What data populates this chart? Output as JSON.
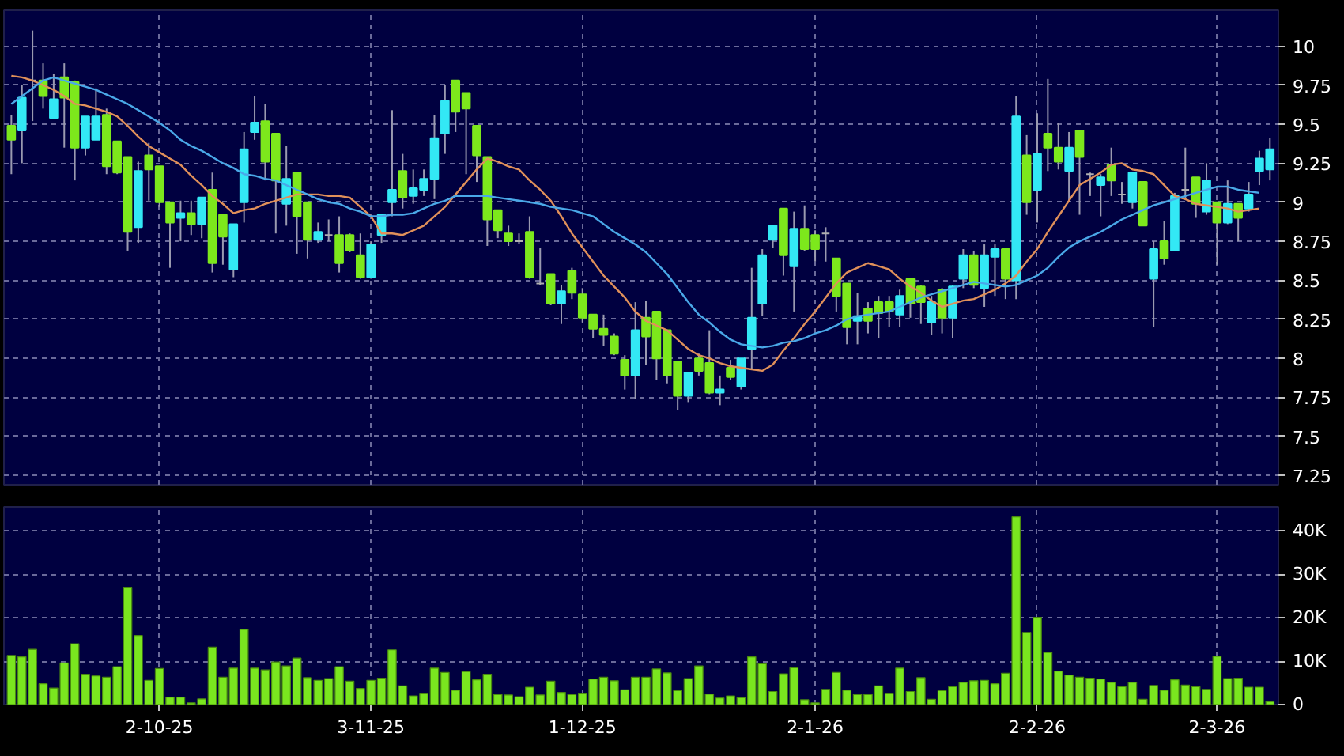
{
  "chart_data": [
    {
      "type": "candlestick",
      "categories": [
        null,
        null,
        null,
        null,
        null,
        null,
        null,
        null,
        null,
        null,
        null,
        null,
        null,
        null,
        null,
        null,
        null,
        null,
        null,
        null,
        null,
        null,
        null,
        null,
        null,
        null,
        null,
        null,
        null,
        null,
        null,
        null,
        null,
        null,
        null,
        null,
        null,
        null,
        null,
        null,
        null,
        null,
        null,
        null,
        null,
        null,
        null,
        null,
        null,
        null,
        null,
        null,
        null,
        null,
        null,
        null,
        null,
        null,
        null,
        null,
        null,
        null,
        null,
        null,
        null,
        null,
        null,
        null,
        null,
        null,
        null,
        null,
        null,
        null,
        null,
        null,
        null,
        null,
        null,
        null,
        null,
        null,
        null,
        null,
        null,
        null,
        null,
        null,
        null,
        null,
        null,
        null,
        null,
        null,
        null,
        null,
        null,
        null,
        null,
        null,
        null,
        null,
        null,
        null,
        null,
        null,
        null,
        null,
        null,
        null,
        null,
        null,
        null,
        null,
        null,
        null,
        null,
        null,
        null,
        null
      ],
      "ohlc": [
        [
          9.49,
          9.56,
          9.18,
          9.4
        ],
        [
          9.46,
          9.75,
          9.25,
          9.67
        ],
        [
          9.78,
          10.1,
          9.52,
          9.78
        ],
        [
          9.78,
          9.89,
          9.6,
          9.68
        ],
        [
          9.54,
          9.82,
          9.54,
          9.66
        ],
        [
          9.8,
          9.89,
          9.35,
          9.67
        ],
        [
          9.77,
          9.78,
          9.14,
          9.35
        ],
        [
          9.35,
          9.55,
          9.3,
          9.55
        ],
        [
          9.4,
          9.73,
          9.4,
          9.55
        ],
        [
          9.56,
          9.6,
          9.18,
          9.23
        ],
        [
          9.39,
          9.39,
          9.18,
          9.19
        ],
        [
          9.29,
          9.29,
          8.69,
          8.81
        ],
        [
          8.84,
          9.26,
          8.74,
          9.2
        ],
        [
          9.3,
          9.38,
          9.01,
          9.21
        ],
        [
          9.23,
          9.23,
          8.97,
          9.0
        ],
        [
          9.0,
          9.0,
          8.58,
          8.87
        ],
        [
          8.9,
          9.01,
          8.75,
          8.93
        ],
        [
          8.93,
          9.01,
          8.79,
          8.86
        ],
        [
          8.86,
          9.03,
          8.77,
          9.03
        ],
        [
          9.08,
          9.19,
          8.55,
          8.61
        ],
        [
          8.92,
          8.92,
          8.6,
          8.78
        ],
        [
          8.57,
          8.86,
          8.52,
          8.86
        ],
        [
          9.0,
          9.45,
          8.87,
          9.34
        ],
        [
          9.45,
          9.68,
          9.4,
          9.51
        ],
        [
          9.52,
          9.63,
          9.14,
          9.26
        ],
        [
          9.44,
          9.44,
          8.8,
          9.14
        ],
        [
          8.99,
          9.36,
          8.85,
          9.15
        ],
        [
          9.19,
          9.19,
          8.67,
          8.91
        ],
        [
          9.0,
          9.0,
          8.64,
          8.76
        ],
        [
          8.76,
          8.87,
          8.74,
          8.81
        ],
        [
          8.79,
          8.89,
          8.75,
          8.79
        ],
        [
          8.79,
          8.91,
          8.55,
          8.61
        ],
        [
          8.79,
          8.8,
          8.68,
          8.69
        ],
        [
          8.66,
          8.8,
          8.51,
          8.52
        ],
        [
          8.52,
          8.75,
          8.51,
          8.73
        ],
        [
          8.79,
          8.92,
          8.74,
          8.92
        ],
        [
          9.0,
          9.59,
          8.91,
          9.08
        ],
        [
          9.2,
          9.31,
          8.96,
          9.03
        ],
        [
          9.04,
          9.21,
          8.99,
          9.09
        ],
        [
          9.08,
          9.21,
          9.04,
          9.15
        ],
        [
          9.15,
          9.56,
          9.02,
          9.41
        ],
        [
          9.44,
          9.75,
          9.31,
          9.65
        ],
        [
          9.78,
          9.78,
          9.45,
          9.58
        ],
        [
          9.7,
          9.7,
          9.18,
          9.6
        ],
        [
          9.49,
          9.49,
          9.13,
          9.3
        ],
        [
          9.29,
          9.29,
          8.72,
          8.89
        ],
        [
          8.95,
          8.95,
          8.77,
          8.82
        ],
        [
          8.8,
          8.85,
          8.72,
          8.75
        ],
        [
          8.75,
          8.8,
          8.73,
          8.75
        ],
        [
          8.81,
          8.91,
          8.51,
          8.52
        ],
        [
          8.48,
          8.71,
          8.47,
          8.48
        ],
        [
          8.54,
          8.54,
          8.34,
          8.35
        ],
        [
          8.35,
          8.47,
          8.22,
          8.43
        ],
        [
          8.56,
          8.58,
          8.38,
          8.42
        ],
        [
          8.41,
          8.45,
          8.23,
          8.26
        ],
        [
          8.28,
          8.28,
          8.13,
          8.19
        ],
        [
          8.19,
          8.28,
          8.08,
          8.15
        ],
        [
          8.14,
          8.16,
          8.02,
          8.03
        ],
        [
          7.99,
          8.02,
          7.8,
          7.89
        ],
        [
          7.89,
          8.36,
          7.74,
          8.18
        ],
        [
          8.26,
          8.37,
          7.96,
          8.14
        ],
        [
          8.3,
          8.3,
          7.86,
          8.0
        ],
        [
          8.18,
          8.18,
          7.84,
          7.89
        ],
        [
          7.98,
          7.98,
          7.67,
          7.76
        ],
        [
          7.76,
          7.91,
          7.72,
          7.91
        ],
        [
          8.0,
          8.03,
          7.89,
          7.92
        ],
        [
          7.97,
          8.18,
          7.77,
          7.78
        ],
        [
          7.78,
          7.89,
          7.7,
          7.8
        ],
        [
          7.94,
          7.99,
          7.86,
          7.88
        ],
        [
          7.82,
          8.0,
          7.8,
          8.0
        ],
        [
          8.06,
          8.58,
          7.93,
          8.26
        ],
        [
          8.35,
          8.7,
          8.27,
          8.66
        ],
        [
          8.76,
          8.85,
          8.71,
          8.85
        ],
        [
          8.96,
          8.96,
          8.53,
          8.66
        ],
        [
          8.59,
          8.94,
          8.3,
          8.83
        ],
        [
          8.83,
          8.98,
          8.69,
          8.7
        ],
        [
          8.79,
          8.82,
          8.62,
          8.7
        ],
        [
          8.8,
          8.84,
          8.62,
          8.8
        ],
        [
          8.64,
          8.64,
          8.3,
          8.4
        ],
        [
          8.48,
          8.48,
          8.09,
          8.2
        ],
        [
          8.24,
          8.42,
          8.09,
          8.27
        ],
        [
          8.32,
          8.36,
          8.16,
          8.24
        ],
        [
          8.36,
          8.4,
          8.13,
          8.29
        ],
        [
          8.36,
          8.4,
          8.2,
          8.3
        ],
        [
          8.28,
          8.44,
          8.2,
          8.4
        ],
        [
          8.51,
          8.51,
          8.26,
          8.35
        ],
        [
          8.46,
          8.47,
          8.22,
          8.36
        ],
        [
          8.23,
          8.4,
          8.15,
          8.36
        ],
        [
          8.44,
          8.45,
          8.16,
          8.26
        ],
        [
          8.26,
          8.47,
          8.13,
          8.46
        ],
        [
          8.51,
          8.7,
          8.45,
          8.66
        ],
        [
          8.66,
          8.69,
          8.45,
          8.47
        ],
        [
          8.45,
          8.73,
          8.33,
          8.66
        ],
        [
          8.65,
          8.73,
          8.4,
          8.7
        ],
        [
          8.7,
          8.7,
          8.38,
          8.51
        ],
        [
          8.5,
          9.68,
          8.38,
          9.55
        ],
        [
          9.3,
          9.43,
          8.92,
          9.0
        ],
        [
          9.08,
          9.57,
          8.87,
          9.31
        ],
        [
          9.44,
          9.79,
          9.2,
          9.35
        ],
        [
          9.35,
          9.51,
          9.21,
          9.26
        ],
        [
          9.2,
          9.45,
          9.01,
          9.35
        ],
        [
          9.46,
          9.46,
          8.92,
          9.29
        ],
        [
          9.18,
          9.19,
          9.04,
          9.18
        ],
        [
          9.11,
          9.18,
          8.91,
          9.16
        ],
        [
          9.24,
          9.35,
          9.04,
          9.14
        ],
        [
          9.05,
          9.13,
          8.99,
          9.05
        ],
        [
          9.0,
          9.19,
          8.96,
          9.19
        ],
        [
          9.13,
          9.13,
          8.85,
          8.85
        ],
        [
          8.51,
          8.75,
          8.2,
          8.7
        ],
        [
          8.75,
          8.88,
          8.6,
          8.64
        ],
        [
          8.69,
          9.06,
          8.69,
          9.04
        ],
        [
          9.08,
          9.35,
          9.02,
          9.08
        ],
        [
          9.16,
          9.16,
          8.9,
          8.99
        ],
        [
          8.94,
          9.25,
          8.92,
          9.14
        ],
        [
          9.0,
          9.0,
          8.6,
          8.87
        ],
        [
          8.87,
          9.14,
          8.86,
          8.99
        ],
        [
          8.99,
          8.99,
          8.75,
          8.9
        ],
        [
          8.96,
          9.13,
          8.94,
          9.05
        ],
        [
          9.2,
          9.33,
          9.11,
          9.28
        ],
        [
          9.21,
          9.41,
          9.14,
          9.34
        ]
      ],
      "colors": [
        "#7de81c",
        "#33e8f5",
        "#b0b0b0",
        "#7de81c",
        "#33e8f5",
        "#7de81c",
        "#7de81c",
        "#33e8f5",
        "#33e8f5",
        "#7de81c",
        "#7de81c",
        "#7de81c",
        "#33e8f5",
        "#7de81c",
        "#7de81c",
        "#7de81c",
        "#33e8f5",
        "#7de81c",
        "#33e8f5",
        "#7de81c",
        "#7de81c",
        "#33e8f5",
        "#33e8f5",
        "#33e8f5",
        "#7de81c",
        "#7de81c",
        "#33e8f5",
        "#7de81c",
        "#7de81c",
        "#33e8f5",
        "#b0b0b0",
        "#7de81c",
        "#7de81c",
        "#7de81c",
        "#33e8f5",
        "#33e8f5",
        "#33e8f5",
        "#7de81c",
        "#33e8f5",
        "#33e8f5",
        "#33e8f5",
        "#33e8f5",
        "#7de81c",
        "#7de81c",
        "#7de81c",
        "#7de81c",
        "#7de81c",
        "#7de81c",
        "#b0b0b0",
        "#7de81c",
        "#b0b0b0",
        "#7de81c",
        "#33e8f5",
        "#7de81c",
        "#7de81c",
        "#7de81c",
        "#7de81c",
        "#7de81c",
        "#7de81c",
        "#33e8f5",
        "#7de81c",
        "#7de81c",
        "#7de81c",
        "#7de81c",
        "#33e8f5",
        "#7de81c",
        "#7de81c",
        "#33e8f5",
        "#7de81c",
        "#33e8f5",
        "#33e8f5",
        "#33e8f5",
        "#33e8f5",
        "#7de81c",
        "#33e8f5",
        "#7de81c",
        "#7de81c",
        "#b0b0b0",
        "#7de81c",
        "#7de81c",
        "#33e8f5",
        "#7de81c",
        "#7de81c",
        "#7de81c",
        "#33e8f5",
        "#7de81c",
        "#7de81c",
        "#33e8f5",
        "#7de81c",
        "#33e8f5",
        "#33e8f5",
        "#7de81c",
        "#33e8f5",
        "#33e8f5",
        "#7de81c",
        "#33e8f5",
        "#7de81c",
        "#33e8f5",
        "#7de81c",
        "#7de81c",
        "#33e8f5",
        "#7de81c",
        "#b0b0b0",
        "#33e8f5",
        "#7de81c",
        "#b0b0b0",
        "#33e8f5",
        "#7de81c",
        "#33e8f5",
        "#7de81c",
        "#33e8f5",
        "#b0b0b0",
        "#7de81c",
        "#33e8f5",
        "#7de81c",
        "#33e8f5",
        "#7de81c",
        "#33e8f5",
        "#33e8f5",
        "#33e8f5"
      ],
      "series": [
        {
          "type": "line",
          "color": "#e0905a",
          "values": [
            9.81,
            9.8,
            9.78,
            9.75,
            9.72,
            9.68,
            9.63,
            9.62,
            9.6,
            9.58,
            9.55,
            9.49,
            9.42,
            9.36,
            9.32,
            9.28,
            9.24,
            9.17,
            9.11,
            9.04,
            8.99,
            8.93,
            8.95,
            8.96,
            8.99,
            9.01,
            9.03,
            9.05,
            9.05,
            9.05,
            9.04,
            9.04,
            9.03,
            8.97,
            8.91,
            8.8,
            8.8,
            8.79,
            8.82,
            8.85,
            8.91,
            8.97,
            9.05,
            9.13,
            9.21,
            9.28,
            9.26,
            9.23,
            9.21,
            9.14,
            9.08,
            9.01,
            8.91,
            8.8,
            8.71,
            8.62,
            8.53,
            8.46,
            8.39,
            8.3,
            8.24,
            8.21,
            8.18,
            8.12,
            8.06,
            8.02,
            8.0,
            7.97,
            7.95,
            7.94,
            7.93,
            7.92,
            7.96,
            8.05,
            8.13,
            8.22,
            8.3,
            8.39,
            8.48,
            8.55,
            8.58,
            8.61,
            8.59,
            8.57,
            8.51,
            8.46,
            8.42,
            8.37,
            8.33,
            8.35,
            8.37,
            8.38,
            8.41,
            8.44,
            8.48,
            8.53,
            8.62,
            8.7,
            8.81,
            8.91,
            9.01,
            9.11,
            9.15,
            9.19,
            9.24,
            9.25,
            9.21,
            9.2,
            9.18,
            9.11,
            9.04,
            9.02,
            8.99,
            8.98,
            8.97,
            8.96,
            8.94,
            8.95,
            8.96,
            null
          ]
        },
        {
          "type": "line",
          "color": "#4aa8e8",
          "values": [
            9.63,
            9.68,
            9.73,
            9.78,
            9.8,
            9.78,
            9.76,
            9.74,
            9.72,
            9.69,
            9.66,
            9.63,
            9.59,
            9.55,
            9.51,
            9.46,
            9.4,
            9.36,
            9.33,
            9.29,
            9.25,
            9.22,
            9.18,
            9.17,
            9.15,
            9.14,
            9.11,
            9.08,
            9.05,
            9.02,
            9.0,
            8.99,
            8.96,
            8.94,
            8.91,
            8.91,
            8.92,
            8.92,
            8.93,
            8.96,
            8.99,
            9.01,
            9.04,
            9.04,
            9.04,
            9.04,
            9.03,
            9.02,
            9.01,
            9.0,
            8.99,
            8.97,
            8.96,
            8.95,
            8.93,
            8.91,
            8.86,
            8.81,
            8.77,
            8.73,
            8.68,
            8.61,
            8.54,
            8.45,
            8.36,
            8.28,
            8.23,
            8.17,
            8.12,
            8.09,
            8.08,
            8.07,
            8.08,
            8.1,
            8.11,
            8.13,
            8.16,
            8.18,
            8.21,
            8.25,
            8.27,
            8.28,
            8.29,
            8.3,
            8.33,
            8.36,
            8.39,
            8.41,
            8.43,
            8.45,
            8.47,
            8.49,
            8.48,
            8.47,
            8.46,
            8.47,
            8.5,
            8.53,
            8.58,
            8.65,
            8.71,
            8.75,
            8.78,
            8.81,
            8.85,
            8.89,
            8.92,
            8.95,
            8.98,
            9.0,
            9.02,
            9.04,
            9.06,
            9.08,
            9.1,
            9.1,
            9.08,
            9.07,
            9.06,
            null
          ]
        }
      ],
      "ylim": [
        7.19,
        10.23
      ],
      "yticks": [
        7.25,
        7.5,
        7.75,
        8,
        8.25,
        8.5,
        8.75,
        9,
        9.25,
        9.5,
        9.75,
        10
      ],
      "grid": true,
      "tick_labels": "y"
    },
    {
      "type": "bar",
      "color": "#7ae61f",
      "categories": [
        null,
        null,
        null,
        null,
        null,
        null,
        null,
        null,
        null,
        null,
        null,
        null,
        null,
        null,
        "2-10-25",
        null,
        null,
        null,
        null,
        null,
        null,
        null,
        null,
        null,
        null,
        null,
        null,
        null,
        null,
        null,
        null,
        null,
        null,
        null,
        "3-11-25",
        null,
        null,
        null,
        null,
        null,
        null,
        null,
        null,
        null,
        null,
        null,
        null,
        null,
        null,
        null,
        null,
        null,
        null,
        null,
        "1-12-25",
        null,
        null,
        null,
        null,
        null,
        null,
        null,
        null,
        null,
        null,
        null,
        null,
        null,
        null,
        null,
        null,
        null,
        null,
        null,
        null,
        null,
        "2-1-26",
        null,
        null,
        null,
        null,
        null,
        null,
        null,
        null,
        null,
        null,
        null,
        null,
        null,
        null,
        null,
        null,
        null,
        null,
        null,
        null,
        "2-2-26",
        null,
        null,
        null,
        null,
        null,
        null,
        null,
        null,
        null,
        null,
        null,
        null,
        null,
        null,
        null,
        null,
        "2-3-26",
        null,
        null,
        null,
        null,
        null
      ],
      "values": [
        11300,
        11000,
        12700,
        4800,
        3800,
        9600,
        14000,
        7000,
        6600,
        6300,
        8700,
        27000,
        15900,
        5600,
        8300,
        1700,
        1700,
        400,
        1300,
        13200,
        6300,
        8400,
        17300,
        8400,
        8000,
        9800,
        8900,
        10700,
        6200,
        5600,
        6000,
        8700,
        5400,
        3700,
        5600,
        6100,
        12600,
        4300,
        2000,
        2600,
        8400,
        7400,
        3300,
        7600,
        5700,
        7000,
        2300,
        2200,
        1800,
        4000,
        2200,
        5400,
        2800,
        2300,
        2600,
        5900,
        6300,
        5500,
        3400,
        6300,
        6300,
        8200,
        7300,
        3200,
        6000,
        8900,
        2400,
        1500,
        2000,
        1600,
        11000,
        9400,
        3000,
        7100,
        8500,
        1100,
        400,
        3500,
        7400,
        3300,
        2300,
        2300,
        4300,
        2600,
        8400,
        3000,
        6200,
        1200,
        3200,
        4100,
        5100,
        5500,
        5600,
        4800,
        7200,
        43200,
        16600,
        20100,
        12000,
        7700,
        6800,
        6300,
        6100,
        5900,
        5100,
        4100,
        5100,
        1200,
        4400,
        3300,
        5700,
        4500,
        4100,
        3500,
        11100,
        6000,
        6100,
        4000,
        4000,
        700
      ],
      "ylim": [
        0,
        45500
      ],
      "yticks": [
        0,
        {
          "value": 10000,
          "label": "10K"
        },
        {
          "value": 20000,
          "label": "20K"
        },
        {
          "value": 30000,
          "label": "30K"
        },
        {
          "value": 40000,
          "label": "40K"
        }
      ],
      "grid": true
    }
  ]
}
